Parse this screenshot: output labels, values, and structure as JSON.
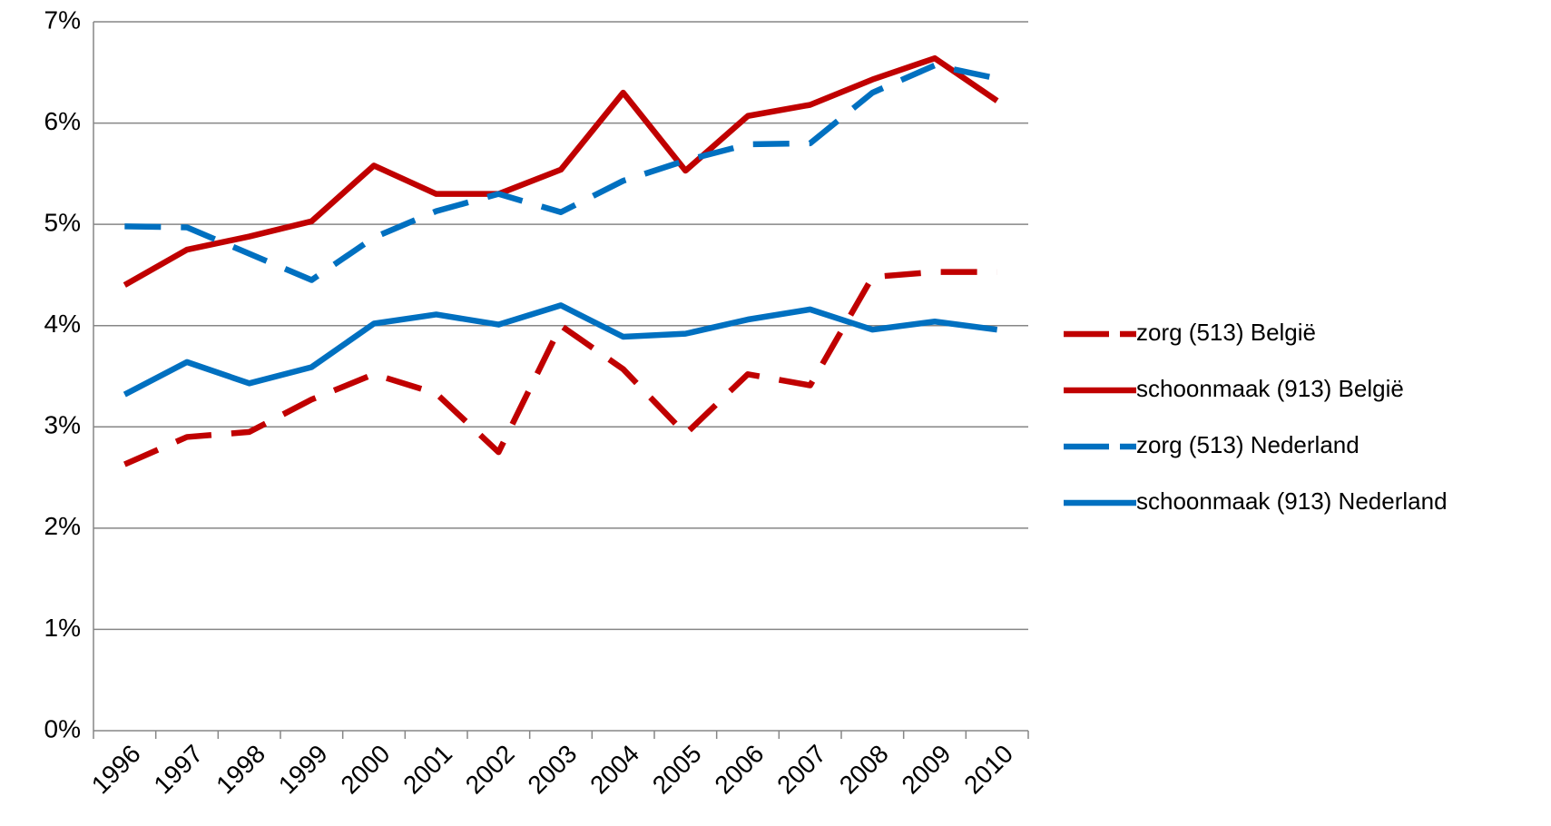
{
  "chart_data": {
    "type": "line",
    "categories": [
      "1996",
      "1997",
      "1998",
      "1999",
      "2000",
      "2001",
      "2002",
      "2003",
      "2004",
      "2005",
      "2006",
      "2007",
      "2008",
      "2009",
      "2010"
    ],
    "series": [
      {
        "name": "zorg (513) België",
        "color": "#c00000",
        "dashed": true,
        "values": [
          2.63,
          2.9,
          2.95,
          3.27,
          3.52,
          3.33,
          2.75,
          4.0,
          3.57,
          2.93,
          3.52,
          3.41,
          4.48,
          4.53,
          4.53
        ]
      },
      {
        "name": "schoonmaak (913) België",
        "color": "#c00000",
        "dashed": false,
        "values": [
          4.4,
          4.75,
          4.88,
          5.03,
          5.58,
          5.3,
          5.3,
          5.54,
          6.3,
          5.53,
          6.07,
          6.18,
          6.43,
          6.64,
          6.22
        ]
      },
      {
        "name": "zorg (513) Nederland",
        "color": "#0070c0",
        "dashed": true,
        "values": [
          4.98,
          4.97,
          4.71,
          4.45,
          4.87,
          5.13,
          5.3,
          5.12,
          5.43,
          5.63,
          5.79,
          5.8,
          6.3,
          6.57,
          6.44
        ]
      },
      {
        "name": "schoonmaak (913) Nederland",
        "color": "#0070c0",
        "dashed": false,
        "values": [
          3.32,
          3.64,
          3.43,
          3.59,
          4.02,
          4.11,
          4.01,
          4.2,
          3.89,
          3.92,
          4.06,
          4.16,
          3.96,
          4.04,
          3.96
        ]
      }
    ],
    "ylim": [
      0,
      7
    ],
    "yticks": [
      {
        "value": 0,
        "label": "0%"
      },
      {
        "value": 1,
        "label": "1%"
      },
      {
        "value": 2,
        "label": "2%"
      },
      {
        "value": 3,
        "label": "3%"
      },
      {
        "value": 4,
        "label": "4%"
      },
      {
        "value": 5,
        "label": "5%"
      },
      {
        "value": 6,
        "label": "6%"
      },
      {
        "value": 7,
        "label": "7%"
      }
    ],
    "grid": true,
    "legend": "right"
  }
}
